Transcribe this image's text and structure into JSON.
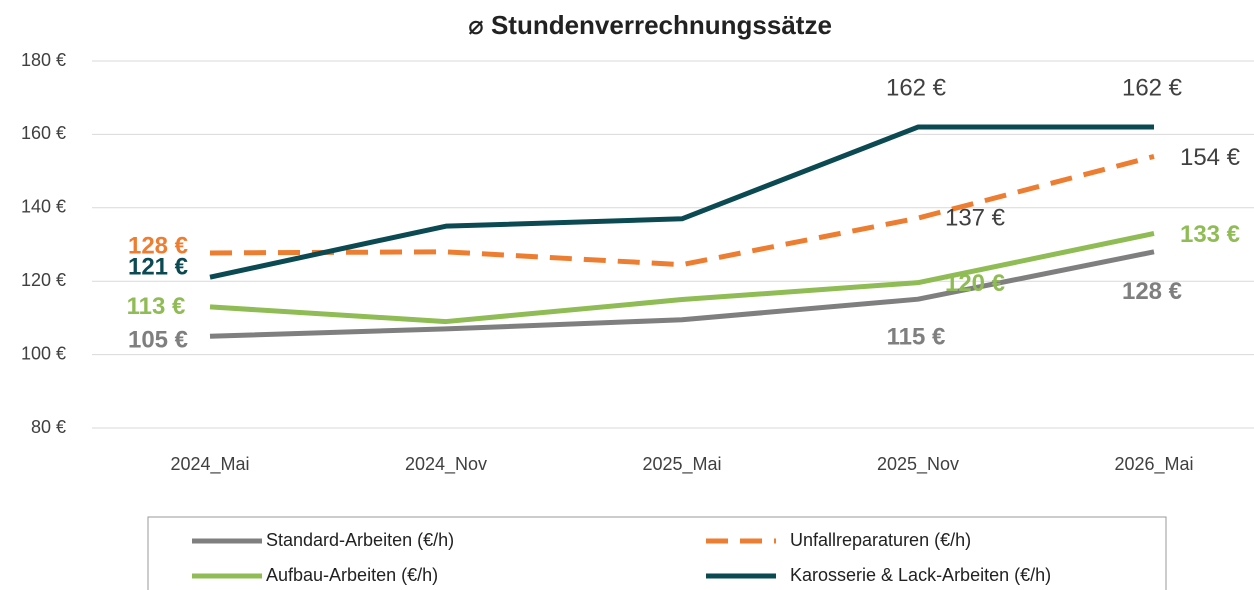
{
  "chart_data": {
    "type": "line",
    "title": "⌀ Stundenverrechnungssätze",
    "categories": [
      "2024_Mai",
      "2024_Nov",
      "2025_Mai",
      "2025_Nov",
      "2026_Mai"
    ],
    "ylim": [
      80,
      180
    ],
    "yticks": [
      {
        "value": 80,
        "label": "80 €"
      },
      {
        "value": 100,
        "label": "100 €"
      },
      {
        "value": 120,
        "label": "120 €"
      },
      {
        "value": 140,
        "label": "140 €"
      },
      {
        "value": 160,
        "label": "160 €"
      },
      {
        "value": 180,
        "label": "180 €"
      }
    ],
    "grid": true,
    "legend": "bottom",
    "series": [
      {
        "name": "Standard-Arbeiten (€/h)",
        "color": "#7f7f7f",
        "dashed": false,
        "values": [
          105,
          107,
          109.5,
          115.1,
          128
        ],
        "value_labels": [
          "105 €",
          null,
          null,
          "115 €",
          "128 €"
        ],
        "value_label_colors": [
          "#7f7f7f",
          null,
          null,
          "#7f7f7f",
          "#7f7f7f"
        ]
      },
      {
        "name": "Unfallreparaturen (€/h)",
        "color": "#ed7d31",
        "dashed": true,
        "values": [
          127.7,
          128,
          124.5,
          137.2,
          154
        ],
        "value_labels": [
          "128 €",
          null,
          null,
          "137 €",
          "154 €"
        ],
        "value_label_colors": [
          "#ed7d31",
          null,
          null,
          "#404040",
          "#404040"
        ]
      },
      {
        "name": "Aufbau-Arbeiten (€/h)",
        "color": "#8fbc55",
        "dashed": false,
        "values": [
          113,
          109,
          115,
          119.6,
          133
        ],
        "value_labels": [
          "113 €",
          null,
          null,
          "120 €",
          "133 €"
        ],
        "value_label_colors": [
          "#8fbc55",
          null,
          null,
          "#8fbc55",
          "#8fbc55"
        ]
      },
      {
        "name": "Karosserie & Lack-Arbeiten (€/h)",
        "color": "#0b4a53",
        "dashed": false,
        "values": [
          121.1,
          135,
          137,
          162,
          162
        ],
        "value_labels": [
          "121 €",
          null,
          null,
          "162 €",
          "162 €"
        ],
        "value_label_colors": [
          "#0b4a53",
          null,
          null,
          "#404040",
          "#404040"
        ]
      }
    ]
  }
}
